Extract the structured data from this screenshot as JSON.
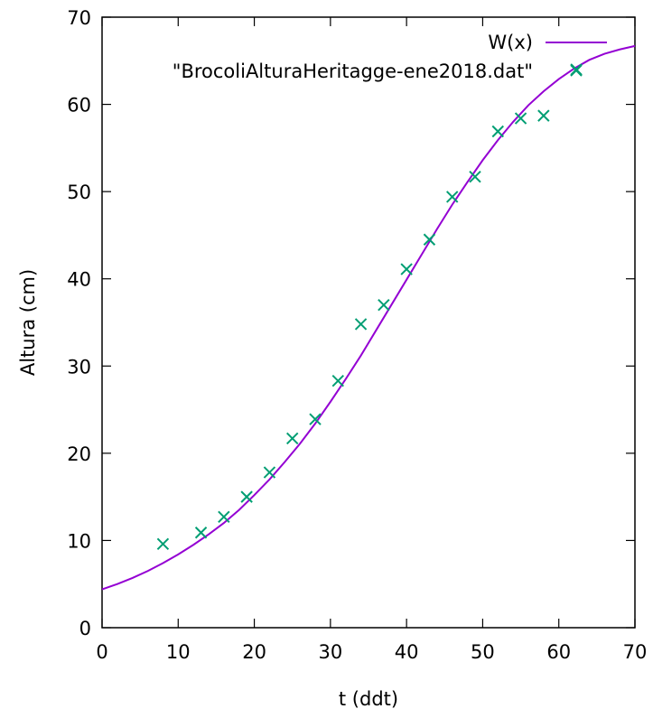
{
  "chart_data": {
    "type": "line",
    "xlabel": "t (ddt)",
    "ylabel": "Altura (cm)",
    "xlim": [
      0,
      70
    ],
    "ylim": [
      0,
      70
    ],
    "xticks": [
      0,
      10,
      20,
      30,
      40,
      50,
      60,
      70
    ],
    "yticks": [
      0,
      10,
      20,
      30,
      40,
      50,
      60,
      70
    ],
    "grid": false,
    "legend_position": "top-right",
    "series": [
      {
        "name": "W(x)",
        "kind": "line",
        "color": "#9400d3",
        "x": [
          0,
          2,
          4,
          6,
          8,
          10,
          12,
          14,
          16,
          18,
          20,
          22,
          24,
          26,
          28,
          30,
          32,
          34,
          36,
          38,
          40,
          42,
          44,
          46,
          48,
          50,
          52,
          54,
          56,
          58,
          60,
          62,
          64,
          66,
          68,
          70
        ],
        "y": [
          4.4,
          5.0,
          5.7,
          6.5,
          7.4,
          8.4,
          9.5,
          10.7,
          12.0,
          13.5,
          15.2,
          17.0,
          19.0,
          21.1,
          23.4,
          25.9,
          28.5,
          31.2,
          34.1,
          37.0,
          39.9,
          42.8,
          45.7,
          48.5,
          51.1,
          53.6,
          55.9,
          58.0,
          59.9,
          61.5,
          62.9,
          64.1,
          65.1,
          65.8,
          66.3,
          66.7
        ]
      },
      {
        "name": "\"BrocoliAlturaHeritagge-ene2018.dat\"",
        "kind": "points",
        "color": "#009e73",
        "x": [
          8,
          13,
          16,
          19,
          22,
          25,
          28,
          31,
          34,
          37,
          40,
          43,
          46,
          49,
          52,
          55,
          58,
          62.3
        ],
        "y": [
          9.6,
          10.9,
          12.7,
          15.0,
          17.8,
          21.7,
          23.9,
          28.3,
          34.8,
          37.0,
          41.1,
          44.5,
          49.4,
          51.7,
          56.9,
          58.4,
          58.7,
          64.0
        ]
      }
    ]
  }
}
